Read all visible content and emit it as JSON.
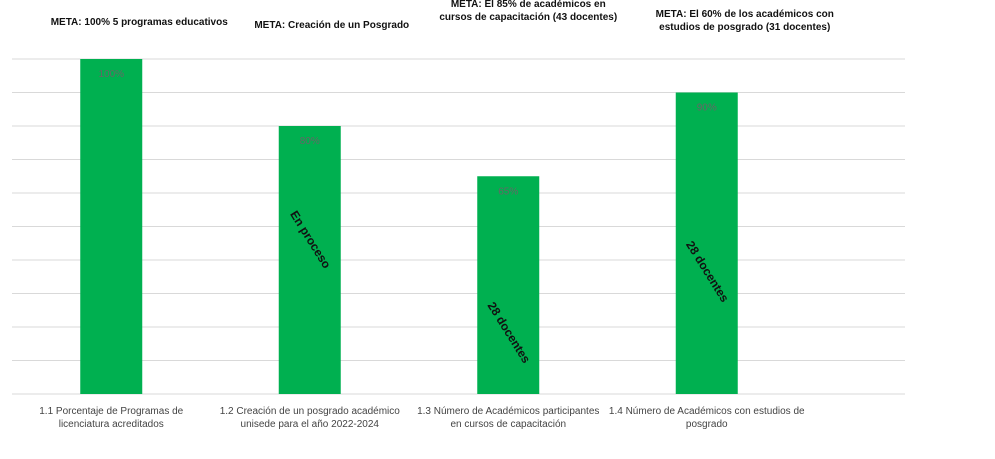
{
  "chart_data": {
    "type": "bar",
    "categories": [
      "1.1 Porcentaje de Programas de licenciatura acreditados",
      "1.2 Creación de un posgrado académico unisede para el año 2022-2024",
      "1.3 Número de Académicos participantes en cursos de capacitación",
      "1.4 Número de Académicos con estudios de posgrado"
    ],
    "values": [
      100,
      80,
      65,
      90
    ],
    "value_labels": [
      "100%",
      "80%",
      "65%",
      "90%"
    ],
    "color": "#00b050",
    "annotations": [
      "META: 100% 5 programas educativos",
      "META: Creación de un Posgrado",
      "META: El 85% de académicos en cursos de capacitación (43 docentes)",
      "META: El 60% de los académicos con estudios de posgrado (31 docentes)"
    ],
    "notes": [
      null,
      "En proceso",
      "28 docentes",
      "28 docentes"
    ],
    "ylim": [
      0,
      100
    ],
    "yticks": [
      0,
      10,
      20,
      30,
      40,
      50,
      60,
      70,
      80,
      90,
      100
    ],
    "grid": true
  }
}
